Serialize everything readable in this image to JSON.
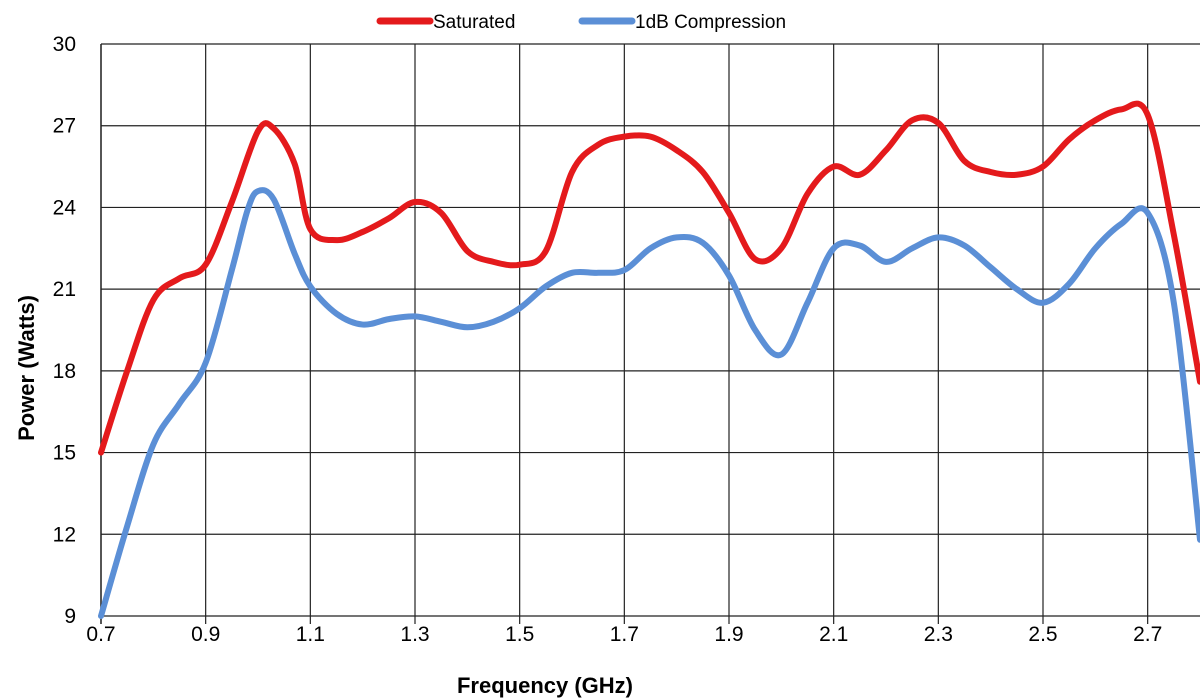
{
  "chart_data": {
    "type": "line",
    "title": "",
    "xlabel": "Frequency (GHz)",
    "ylabel": "Power (Watts)",
    "xlim": [
      0.7,
      2.8
    ],
    "ylim": [
      9,
      30
    ],
    "x_ticks": [
      0.7,
      0.9,
      1.1,
      1.3,
      1.5,
      1.7,
      1.9,
      2.1,
      2.3,
      2.5,
      2.7
    ],
    "x_tick_labels": [
      "0.7",
      "0.9",
      "1.1",
      "1.3",
      "1.5",
      "1.7",
      "1.9",
      "2.1",
      "2.3",
      "2.5",
      "2.7"
    ],
    "y_ticks": [
      9,
      12,
      15,
      18,
      21,
      24,
      27,
      30
    ],
    "y_tick_labels": [
      "9",
      "12",
      "15",
      "18",
      "21",
      "24",
      "27",
      "30"
    ],
    "grid": "vertical and horizontal",
    "legend_position": "top",
    "series": [
      {
        "name": "Saturated",
        "color": "#e41a1c",
        "x": [
          0.7,
          0.75,
          0.8,
          0.85,
          0.9,
          0.95,
          1.0,
          1.03,
          1.07,
          1.1,
          1.15,
          1.2,
          1.25,
          1.3,
          1.35,
          1.4,
          1.45,
          1.5,
          1.55,
          1.6,
          1.65,
          1.7,
          1.75,
          1.8,
          1.85,
          1.9,
          1.95,
          2.0,
          2.05,
          2.1,
          2.15,
          2.2,
          2.25,
          2.3,
          2.35,
          2.4,
          2.45,
          2.5,
          2.55,
          2.6,
          2.65,
          2.7,
          2.75,
          2.8
        ],
        "y": [
          15.0,
          18.0,
          20.6,
          21.4,
          21.9,
          24.2,
          26.8,
          26.9,
          25.6,
          23.2,
          22.8,
          23.1,
          23.6,
          24.2,
          23.8,
          22.4,
          22.0,
          21.9,
          22.4,
          25.3,
          26.3,
          26.6,
          26.6,
          26.1,
          25.3,
          23.8,
          22.1,
          22.5,
          24.5,
          25.5,
          25.2,
          26.1,
          27.2,
          27.1,
          25.7,
          25.3,
          25.2,
          25.5,
          26.5,
          27.2,
          27.6,
          27.4,
          23.0,
          17.6
        ]
      },
      {
        "name": "1dB Compression",
        "color": "#5b8fd6",
        "x": [
          0.7,
          0.75,
          0.8,
          0.85,
          0.9,
          0.95,
          0.98,
          1.0,
          1.03,
          1.07,
          1.1,
          1.15,
          1.2,
          1.25,
          1.3,
          1.35,
          1.4,
          1.45,
          1.5,
          1.55,
          1.6,
          1.65,
          1.7,
          1.75,
          1.8,
          1.85,
          1.9,
          1.95,
          2.0,
          2.05,
          2.1,
          2.15,
          2.2,
          2.25,
          2.3,
          2.35,
          2.4,
          2.45,
          2.5,
          2.55,
          2.6,
          2.65,
          2.7,
          2.75,
          2.8
        ],
        "y": [
          9.0,
          12.3,
          15.3,
          16.8,
          18.3,
          21.7,
          23.9,
          24.6,
          24.3,
          22.3,
          21.1,
          20.1,
          19.7,
          19.9,
          20.0,
          19.8,
          19.6,
          19.8,
          20.3,
          21.1,
          21.6,
          21.6,
          21.7,
          22.5,
          22.9,
          22.7,
          21.5,
          19.5,
          18.6,
          20.5,
          22.5,
          22.6,
          22.0,
          22.5,
          22.9,
          22.6,
          21.8,
          21.0,
          20.5,
          21.2,
          22.5,
          23.4,
          23.8,
          20.5,
          11.8
        ]
      }
    ]
  }
}
